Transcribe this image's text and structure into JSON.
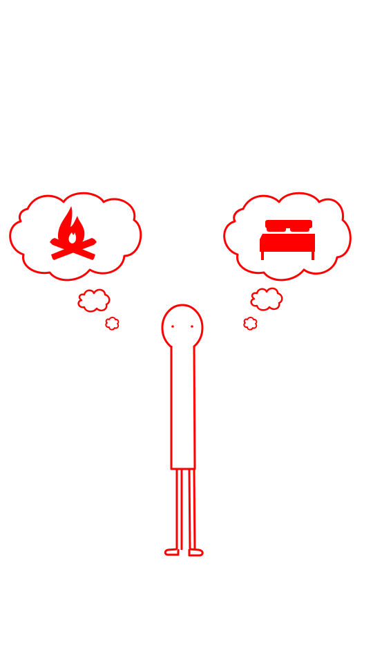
{
  "theme": {
    "stroke_color": "#ff0000",
    "background": "#ffffff"
  },
  "choices": [
    {
      "id": "campfire",
      "icon": "campfire-icon"
    },
    {
      "id": "bed",
      "icon": "bed-icon"
    }
  ],
  "character": {
    "icon": "stick-figure"
  }
}
